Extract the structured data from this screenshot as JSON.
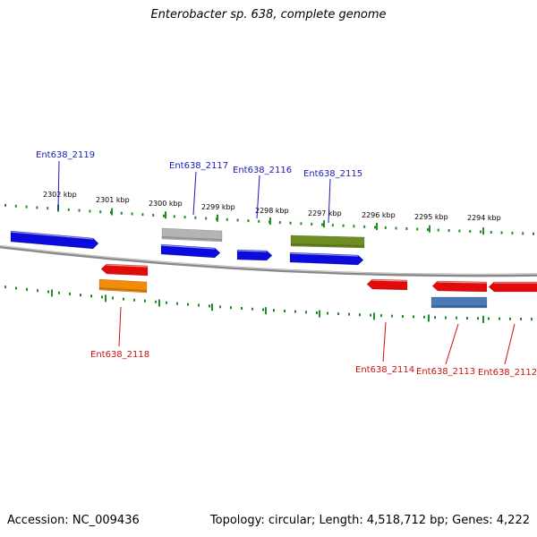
{
  "title": "Enterobacter sp. 638, complete genome",
  "footer": {
    "accession": "Accession: NC_009436",
    "summary": "Topology: circular; Length: 4,518,712 bp; Genes: 4,222"
  },
  "colors": {
    "background": "#ffffff",
    "backbone": "#888888",
    "tick": "#1f8f1f",
    "forward_label": "#1a1ab8",
    "reverse_label": "#cc1111"
  },
  "axis": {
    "ticks": [
      {
        "label": "2302 kbp"
      },
      {
        "label": "2301 kbp"
      },
      {
        "label": "2300 kbp"
      },
      {
        "label": "2299 kbp"
      },
      {
        "label": "2298 kbp"
      },
      {
        "label": "2297 kbp"
      },
      {
        "label": "2296 kbp"
      },
      {
        "label": "2295 kbp"
      },
      {
        "label": "2294 kbp"
      }
    ]
  },
  "genes": [
    {
      "locus": "Ent638_2119",
      "strand": "forward",
      "color": "#0b0bdc"
    },
    {
      "locus": "Ent638_2117",
      "strand": "forward",
      "color": "#0b0bdc"
    },
    {
      "locus": "Ent638_2116",
      "strand": "forward",
      "color": "#0b0bdc"
    },
    {
      "locus": "Ent638_2115",
      "strand": "forward",
      "color": "#0b0bdc"
    },
    {
      "locus": "Ent638_2118",
      "strand": "reverse",
      "color": "#e00c0c"
    },
    {
      "locus": "Ent638_2114",
      "strand": "reverse",
      "color": "#e00c0c"
    },
    {
      "locus": "Ent638_2113",
      "strand": "reverse",
      "color": "#e00c0c"
    },
    {
      "locus": "Ent638_2112",
      "strand": "reverse",
      "color": "#e00c0c"
    }
  ],
  "features": [
    {
      "name": "grey-feature",
      "color": "#b4b4b4"
    },
    {
      "name": "olive-feature",
      "color": "#6e8e22"
    },
    {
      "name": "orange-feature",
      "color": "#f28c0a"
    },
    {
      "name": "steelblue-feature",
      "color": "#4a7bb8"
    }
  ]
}
